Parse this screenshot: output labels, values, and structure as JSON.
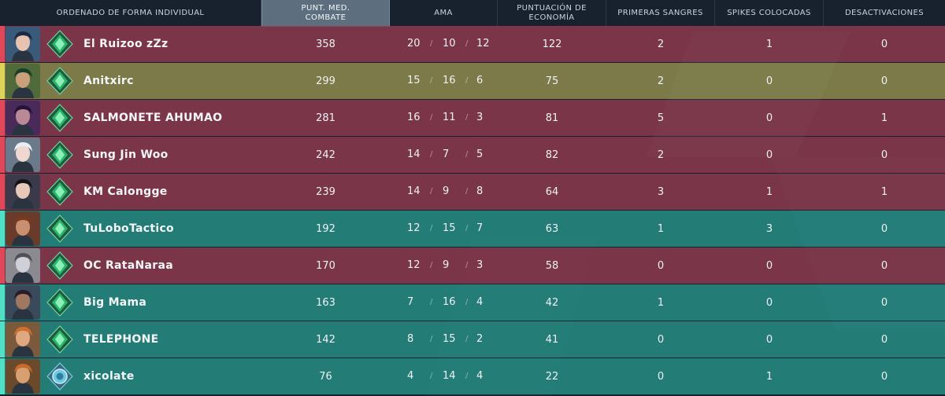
{
  "columns": {
    "player": "ORDENADO DE FORMA INDIVIDUAL",
    "acs_line1": "PUNT. MED.",
    "acs_line2": "COMBATE",
    "kda": "AMA",
    "econ_line1": "PUNTUACIÓN DE",
    "econ_line2": "ECONOMÍA",
    "first_bloods": "PRIMERAS SANGRES",
    "plants": "SPIKES COLOCADAS",
    "defuses": "DESACTIVACIONES"
  },
  "kda_separator": "/",
  "colors": {
    "red_team": "#963c50",
    "yellow_self": "#96915a",
    "teal_team": "#28968c",
    "header_active": "#5d6f7e"
  },
  "players": [
    {
      "name": "El Ruizoo zZz",
      "team": "red",
      "rank_icon": "emerald-rank-icon",
      "acs": "358",
      "k": "20",
      "d": "10",
      "a": "12",
      "econ": "122",
      "fb": "2",
      "plants": "1",
      "defuses": "0"
    },
    {
      "name": "Anitxirc",
      "team": "yellow",
      "rank_icon": "emerald-rank-icon",
      "acs": "299",
      "k": "15",
      "d": "16",
      "a": "6",
      "econ": "75",
      "fb": "2",
      "plants": "0",
      "defuses": "0"
    },
    {
      "name": "SALMONETE AHUMAO",
      "team": "red",
      "rank_icon": "emerald-rank-icon",
      "acs": "281",
      "k": "16",
      "d": "11",
      "a": "3",
      "econ": "81",
      "fb": "5",
      "plants": "0",
      "defuses": "1"
    },
    {
      "name": "Sung Jin Woo",
      "team": "red",
      "rank_icon": "emerald-rank-icon",
      "acs": "242",
      "k": "14",
      "d": "7",
      "a": "5",
      "econ": "82",
      "fb": "2",
      "plants": "0",
      "defuses": "0"
    },
    {
      "name": "KM Calongge",
      "team": "red",
      "rank_icon": "emerald-rank-icon",
      "acs": "239",
      "k": "14",
      "d": "9",
      "a": "8",
      "econ": "64",
      "fb": "3",
      "plants": "1",
      "defuses": "1"
    },
    {
      "name": "TuLoboTactico",
      "team": "teal",
      "rank_icon": "emerald-rank-icon",
      "acs": "192",
      "k": "12",
      "d": "15",
      "a": "7",
      "econ": "63",
      "fb": "1",
      "plants": "3",
      "defuses": "0"
    },
    {
      "name": "OC RataNaraa",
      "team": "red",
      "rank_icon": "emerald-rank-icon",
      "acs": "170",
      "k": "12",
      "d": "9",
      "a": "3",
      "econ": "58",
      "fb": "0",
      "plants": "0",
      "defuses": "0"
    },
    {
      "name": "Big Mama",
      "team": "teal",
      "rank_icon": "emerald-rank-icon",
      "acs": "163",
      "k": "7",
      "d": "16",
      "a": "4",
      "econ": "42",
      "fb": "1",
      "plants": "0",
      "defuses": "0"
    },
    {
      "name": "TELEPHONE",
      "team": "teal",
      "rank_icon": "emerald-rank-icon",
      "acs": "142",
      "k": "8",
      "d": "15",
      "a": "2",
      "econ": "41",
      "fb": "0",
      "plants": "0",
      "defuses": "0"
    },
    {
      "name": "xicolate",
      "team": "teal",
      "rank_icon": "platinum-rank-icon",
      "acs": "76",
      "k": "4",
      "d": "14",
      "a": "4",
      "econ": "22",
      "fb": "0",
      "plants": "1",
      "defuses": "0"
    }
  ]
}
